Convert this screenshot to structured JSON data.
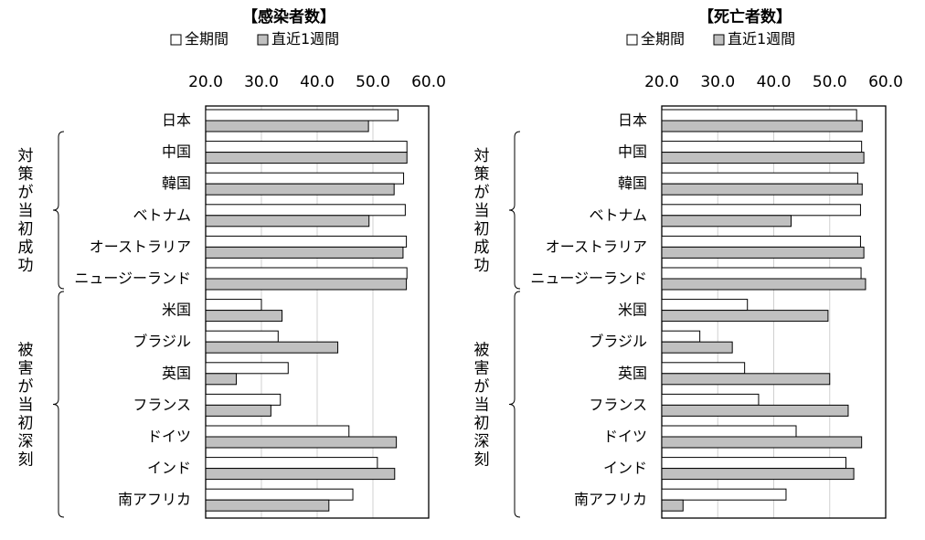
{
  "chart_data": [
    {
      "type": "bar",
      "orientation": "horizontal",
      "title": "【感染者数】",
      "xlim": [
        20,
        60
      ],
      "xticks": [
        "20.0",
        "30.0",
        "40.0",
        "50.0",
        "60.0"
      ],
      "grid": true,
      "legend_position": "top",
      "categories": [
        "日本",
        "中国",
        "韓国",
        "ベトナム",
        "オーストラリア",
        "ニュージーランド",
        "米国",
        "ブラジル",
        "英国",
        "フランス",
        "ドイツ",
        "インド",
        "南アフリカ"
      ],
      "groups": [
        {
          "label": "対策が当初成功",
          "categories": [
            "日本",
            "中国",
            "韓国",
            "ベトナム",
            "オーストラリア",
            "ニュージーランド"
          ]
        },
        {
          "label": "被害が当初深刻",
          "categories": [
            "米国",
            "ブラジル",
            "英国",
            "フランス",
            "ドイツ",
            "インド",
            "南アフリカ"
          ]
        }
      ],
      "series": [
        {
          "name": "全期間",
          "color": "#ffffff",
          "values": [
            54.5,
            56.1,
            55.5,
            55.8,
            56.0,
            56.1,
            30.0,
            33.0,
            34.8,
            33.4,
            45.7,
            50.8,
            46.4
          ]
        },
        {
          "name": "直近1週間",
          "color": "#c0c0c0",
          "values": [
            49.2,
            56.1,
            53.8,
            49.3,
            55.4,
            56.0,
            33.7,
            43.7,
            25.5,
            31.7,
            54.2,
            53.9,
            42.1
          ]
        }
      ]
    },
    {
      "type": "bar",
      "orientation": "horizontal",
      "title": "【死亡者数】",
      "xlim": [
        20,
        60
      ],
      "xticks": [
        "20.0",
        "30.0",
        "40.0",
        "50.0",
        "60.0"
      ],
      "grid": true,
      "legend_position": "top",
      "categories": [
        "日本",
        "中国",
        "韓国",
        "ベトナム",
        "オーストラリア",
        "ニュージーランド",
        "米国",
        "ブラジル",
        "英国",
        "フランス",
        "ドイツ",
        "インド",
        "南アフリカ"
      ],
      "groups": [
        {
          "label": "対策が当初成功",
          "categories": [
            "日本",
            "中国",
            "韓国",
            "ベトナム",
            "オーストラリア",
            "ニュージーランド"
          ]
        },
        {
          "label": "被害が当初深刻",
          "categories": [
            "米国",
            "ブラジル",
            "英国",
            "フランス",
            "ドイツ",
            "インド",
            "南アフリカ"
          ]
        }
      ],
      "series": [
        {
          "name": "全期間",
          "color": "#ffffff",
          "values": [
            54.8,
            55.7,
            55.0,
            55.5,
            55.5,
            55.6,
            35.3,
            26.8,
            34.8,
            37.3,
            44.0,
            52.9,
            42.2
          ]
        },
        {
          "name": "直近1週間",
          "color": "#c0c0c0",
          "values": [
            55.8,
            56.1,
            55.8,
            43.1,
            56.1,
            56.4,
            49.7,
            32.6,
            50.0,
            53.3,
            55.7,
            54.3,
            23.8
          ]
        }
      ]
    }
  ]
}
